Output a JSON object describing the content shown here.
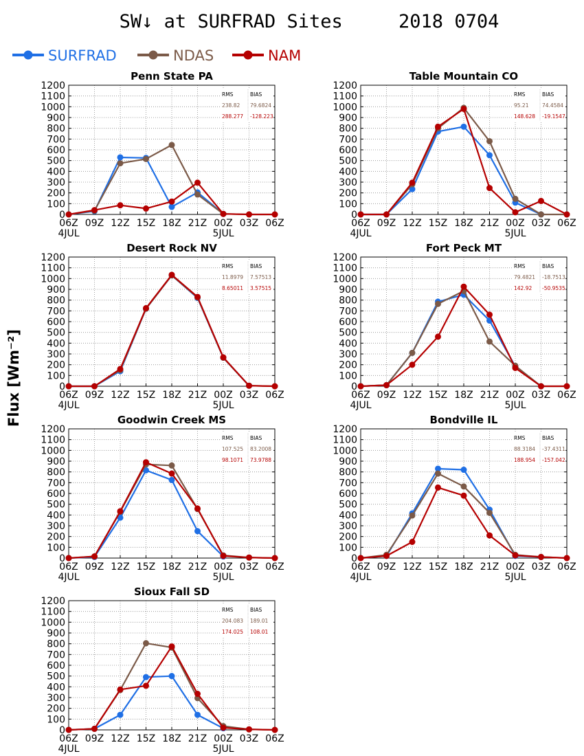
{
  "title": "SW↓ at SURFRAD Sites     2018 0704",
  "ylabel": "Flux [Wm⁻²]",
  "legend": [
    {
      "name": "SURFRAD",
      "color": "#1f6fe5"
    },
    {
      "name": "NDAS",
      "color": "#7b5a48"
    },
    {
      "name": "NAM",
      "color": "#b50000"
    }
  ],
  "chart_data": [
    {
      "type": "line",
      "title": "Penn State PA",
      "x": [
        "06Z",
        "09Z",
        "12Z",
        "15Z",
        "18Z",
        "21Z",
        "00Z",
        "03Z",
        "06Z"
      ],
      "date_labels": [
        "4JUL",
        "5JUL"
      ],
      "ylim": [
        0,
        1200
      ],
      "yticks": [
        0,
        100,
        200,
        300,
        400,
        500,
        600,
        700,
        800,
        900,
        1000,
        1100,
        1200
      ],
      "grid": true,
      "series": [
        {
          "name": "SURFRAD",
          "values": [
            0,
            30,
            530,
            525,
            70,
            205,
            5,
            null,
            null
          ]
        },
        {
          "name": "NDAS",
          "values": [
            0,
            35,
            475,
            515,
            645,
            185,
            5,
            0,
            0
          ]
        },
        {
          "name": "NAM",
          "values": [
            0,
            40,
            85,
            55,
            120,
            295,
            5,
            0,
            0
          ]
        }
      ],
      "stats": {
        "headers": [
          "RMS",
          "BIAS"
        ],
        "rows": [
          [
            "238.82",
            "79.6824"
          ],
          [
            "288.277",
            "-128.223"
          ]
        ]
      }
    },
    {
      "type": "line",
      "title": "Table Mountain CO",
      "x": [
        "06Z",
        "09Z",
        "12Z",
        "15Z",
        "18Z",
        "21Z",
        "00Z",
        "03Z",
        "06Z"
      ],
      "date_labels": [
        "4JUL",
        "5JUL"
      ],
      "ylim": [
        0,
        1200
      ],
      "yticks": [
        0,
        100,
        200,
        300,
        400,
        500,
        600,
        700,
        800,
        900,
        1000,
        1100,
        1200
      ],
      "grid": true,
      "series": [
        {
          "name": "SURFRAD",
          "values": [
            0,
            0,
            235,
            770,
            815,
            550,
            110,
            0,
            null
          ]
        },
        {
          "name": "NDAS",
          "values": [
            0,
            0,
            280,
            800,
            990,
            680,
            145,
            0,
            0
          ]
        },
        {
          "name": "NAM",
          "values": [
            0,
            0,
            295,
            815,
            980,
            245,
            20,
            125,
            0
          ]
        }
      ],
      "stats": {
        "headers": [
          "RMS",
          "BIAS"
        ],
        "rows": [
          [
            "95.21",
            "74.4584"
          ],
          [
            "148.628",
            "-19.1547"
          ]
        ]
      }
    },
    {
      "type": "line",
      "title": "Desert Rock NV",
      "x": [
        "06Z",
        "09Z",
        "12Z",
        "15Z",
        "18Z",
        "21Z",
        "00Z",
        "03Z",
        "06Z"
      ],
      "date_labels": [
        "4JUL",
        "5JUL"
      ],
      "ylim": [
        0,
        1200
      ],
      "yticks": [
        0,
        100,
        200,
        300,
        400,
        500,
        600,
        700,
        800,
        900,
        1000,
        1100,
        1200
      ],
      "grid": true,
      "series": [
        {
          "name": "SURFRAD",
          "values": [
            0,
            0,
            140,
            720,
            1030,
            820,
            265,
            5,
            null
          ]
        },
        {
          "name": "NDAS",
          "values": [
            0,
            0,
            150,
            720,
            1030,
            825,
            265,
            5,
            0
          ]
        },
        {
          "name": "NAM",
          "values": [
            0,
            0,
            160,
            725,
            1035,
            830,
            268,
            5,
            0
          ]
        }
      ],
      "stats": {
        "headers": [
          "RMS",
          "BIAS"
        ],
        "rows": [
          [
            "11.8979",
            "7.57513"
          ],
          [
            "8.65011",
            "3.57515"
          ]
        ]
      }
    },
    {
      "type": "line",
      "title": "Fort Peck MT",
      "x": [
        "06Z",
        "09Z",
        "12Z",
        "15Z",
        "18Z",
        "21Z",
        "00Z",
        "03Z",
        "06Z"
      ],
      "date_labels": [
        "4JUL",
        "5JUL"
      ],
      "ylim": [
        0,
        1200
      ],
      "yticks": [
        0,
        100,
        200,
        300,
        400,
        500,
        600,
        700,
        800,
        900,
        1000,
        1100,
        1200
      ],
      "grid": true,
      "series": [
        {
          "name": "SURFRAD",
          "values": [
            0,
            10,
            310,
            785,
            850,
            610,
            185,
            0,
            null
          ]
        },
        {
          "name": "NDAS",
          "values": [
            0,
            10,
            310,
            765,
            885,
            415,
            190,
            0,
            0
          ]
        },
        {
          "name": "NAM",
          "values": [
            0,
            10,
            200,
            460,
            925,
            665,
            170,
            0,
            0
          ]
        }
      ],
      "stats": {
        "headers": [
          "RMS",
          "BIAS"
        ],
        "rows": [
          [
            "79.4821",
            "-18.7513"
          ],
          [
            "142.92",
            "-50.9535"
          ]
        ]
      }
    },
    {
      "type": "line",
      "title": "Goodwin Creek MS",
      "x": [
        "06Z",
        "09Z",
        "12Z",
        "15Z",
        "18Z",
        "21Z",
        "00Z",
        "03Z",
        "06Z"
      ],
      "date_labels": [
        "4JUL",
        "5JUL"
      ],
      "ylim": [
        0,
        1200
      ],
      "yticks": [
        0,
        100,
        200,
        300,
        400,
        500,
        600,
        700,
        800,
        900,
        1000,
        1100,
        1200
      ],
      "grid": true,
      "series": [
        {
          "name": "SURFRAD",
          "values": [
            0,
            10,
            375,
            815,
            725,
            250,
            15,
            null,
            null
          ]
        },
        {
          "name": "NDAS",
          "values": [
            0,
            15,
            430,
            870,
            860,
            455,
            25,
            5,
            0
          ]
        },
        {
          "name": "NAM",
          "values": [
            0,
            15,
            435,
            890,
            785,
            460,
            20,
            5,
            0
          ]
        }
      ],
      "stats": {
        "headers": [
          "RMS",
          "BIAS"
        ],
        "rows": [
          [
            "107.525",
            "83.2008"
          ],
          [
            "98.1071",
            "73.9788"
          ]
        ]
      }
    },
    {
      "type": "line",
      "title": "Bondville IL",
      "x": [
        "06Z",
        "09Z",
        "12Z",
        "15Z",
        "18Z",
        "21Z",
        "00Z",
        "03Z",
        "06Z"
      ],
      "date_labels": [
        "4JUL",
        "5JUL"
      ],
      "ylim": [
        0,
        1200
      ],
      "yticks": [
        0,
        100,
        200,
        300,
        400,
        500,
        600,
        700,
        800,
        900,
        1000,
        1100,
        1200
      ],
      "grid": true,
      "series": [
        {
          "name": "SURFRAD",
          "values": [
            0,
            20,
            415,
            830,
            820,
            450,
            20,
            10,
            null
          ]
        },
        {
          "name": "NDAS",
          "values": [
            0,
            30,
            395,
            785,
            665,
            420,
            30,
            10,
            0
          ]
        },
        {
          "name": "NAM",
          "values": [
            0,
            20,
            150,
            655,
            580,
            210,
            25,
            10,
            0
          ]
        }
      ],
      "stats": {
        "headers": [
          "RMS",
          "BIAS"
        ],
        "rows": [
          [
            "88.3184",
            "-37.4311"
          ],
          [
            "188.954",
            "-157.042"
          ]
        ]
      }
    },
    {
      "type": "line",
      "title": "Sioux Fall SD",
      "x": [
        "06Z",
        "09Z",
        "12Z",
        "15Z",
        "18Z",
        "21Z",
        "00Z",
        "03Z",
        "06Z"
      ],
      "date_labels": [
        "4JUL",
        "5JUL"
      ],
      "ylim": [
        0,
        1200
      ],
      "yticks": [
        0,
        100,
        200,
        300,
        400,
        500,
        600,
        700,
        800,
        900,
        1000,
        1100,
        1200
      ],
      "grid": true,
      "series": [
        {
          "name": "SURFRAD",
          "values": [
            0,
            10,
            140,
            490,
            500,
            140,
            15,
            null,
            null
          ]
        },
        {
          "name": "NDAS",
          "values": [
            0,
            10,
            370,
            805,
            765,
            295,
            35,
            5,
            0
          ]
        },
        {
          "name": "NAM",
          "values": [
            0,
            10,
            375,
            410,
            775,
            335,
            20,
            5,
            0
          ]
        }
      ],
      "stats": {
        "headers": [
          "RMS",
          "BIAS"
        ],
        "rows": [
          [
            "204.083",
            "189.01"
          ],
          [
            "174.025",
            "108.01"
          ]
        ]
      }
    }
  ]
}
